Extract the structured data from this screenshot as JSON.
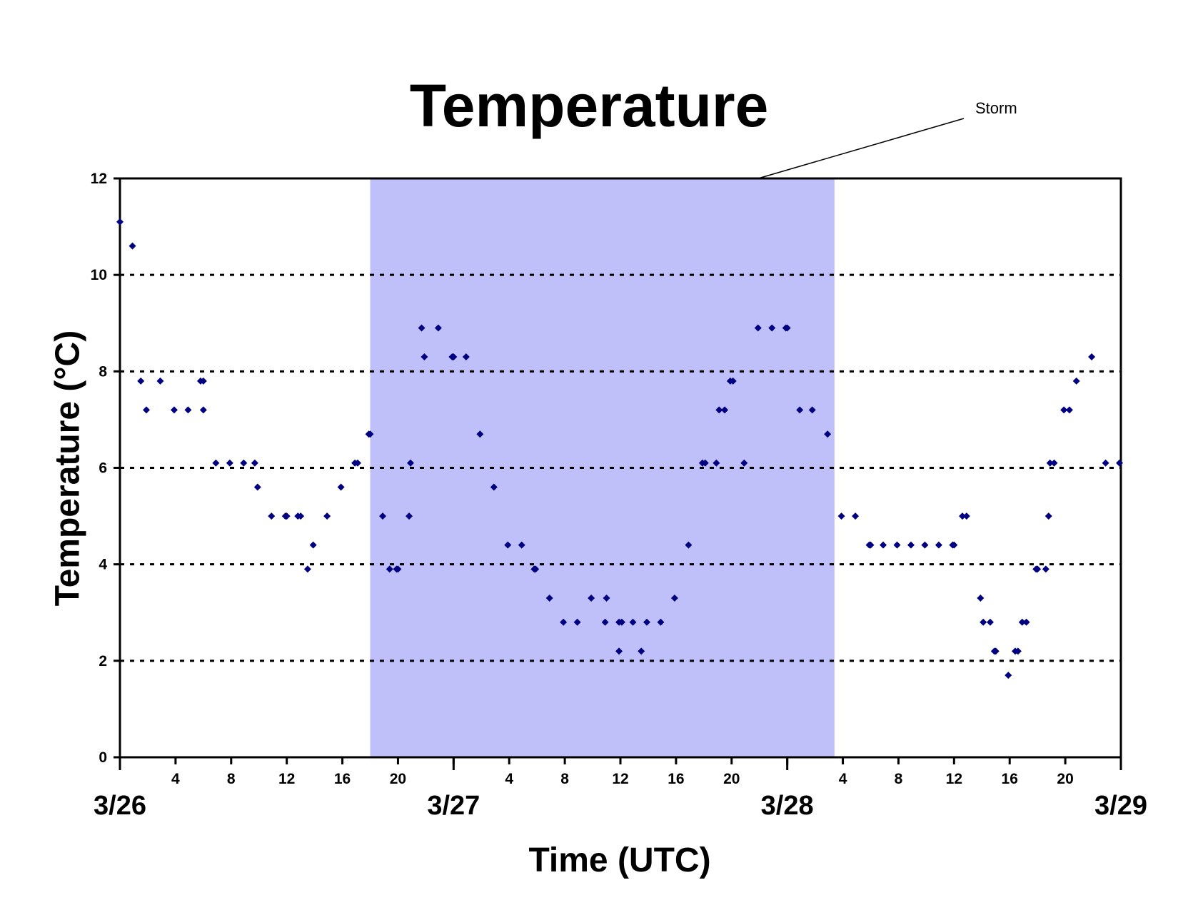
{
  "chart_data": {
    "type": "scatter",
    "title": "Temperature",
    "xlabel": "Time (UTC)",
    "ylabel": "Temperature (°C)",
    "ylim": [
      0,
      12
    ],
    "yticks": [
      0,
      2,
      4,
      6,
      8,
      10,
      12
    ],
    "xlim_hours": [
      0,
      72
    ],
    "hour_tick_labels": [
      "4",
      "8",
      "12",
      "16",
      "20",
      "4",
      "8",
      "12",
      "16",
      "20",
      "4",
      "8",
      "12",
      "16",
      "20"
    ],
    "hour_tick_values": [
      4,
      8,
      12,
      16,
      20,
      28,
      32,
      36,
      40,
      44,
      52,
      56,
      60,
      64,
      68
    ],
    "day_labels": [
      {
        "label": "3/26",
        "hour": 0
      },
      {
        "label": "3/27",
        "hour": 24
      },
      {
        "label": "3/28",
        "hour": 48
      },
      {
        "label": "3/29",
        "hour": 72
      }
    ],
    "grid": "horizontal dotted",
    "marker_color": "#000080",
    "storm": {
      "label": "Storm",
      "start_hour": 18,
      "end_hour": 51.4,
      "color": "#bfbffa"
    },
    "series": [
      {
        "name": "",
        "points": [
          [
            0,
            11.1
          ],
          [
            0.9,
            10.6
          ],
          [
            1.5,
            7.8
          ],
          [
            1.9,
            7.2
          ],
          [
            2.9,
            7.8
          ],
          [
            3.9,
            7.2
          ],
          [
            4.9,
            7.2
          ],
          [
            5.8,
            7.8
          ],
          [
            6.0,
            7.8
          ],
          [
            6.0,
            7.2
          ],
          [
            6.9,
            6.1
          ],
          [
            7.9,
            6.1
          ],
          [
            8.9,
            6.1
          ],
          [
            9.7,
            6.1
          ],
          [
            9.9,
            5.6
          ],
          [
            10.9,
            5.0
          ],
          [
            11.9,
            5.0
          ],
          [
            12.0,
            5.0
          ],
          [
            12.8,
            5.0
          ],
          [
            13.0,
            5.0
          ],
          [
            13.5,
            3.9
          ],
          [
            13.9,
            4.4
          ],
          [
            14.9,
            5.0
          ],
          [
            15.9,
            5.6
          ],
          [
            16.9,
            6.1
          ],
          [
            17.1,
            6.1
          ],
          [
            17.9,
            6.7
          ],
          [
            18.0,
            6.7
          ],
          [
            18.9,
            5.0
          ],
          [
            19.4,
            3.9
          ],
          [
            19.9,
            3.9
          ],
          [
            20.0,
            3.9
          ],
          [
            20.8,
            5.0
          ],
          [
            20.9,
            6.1
          ],
          [
            21.7,
            8.9
          ],
          [
            21.9,
            8.3
          ],
          [
            22.9,
            8.9
          ],
          [
            23.9,
            8.3
          ],
          [
            24.0,
            8.3
          ],
          [
            24.9,
            8.3
          ],
          [
            25.9,
            6.7
          ],
          [
            26.9,
            5.6
          ],
          [
            27.9,
            4.4
          ],
          [
            28.9,
            4.4
          ],
          [
            29.8,
            3.9
          ],
          [
            29.9,
            3.9
          ],
          [
            30.9,
            3.3
          ],
          [
            31.9,
            2.8
          ],
          [
            32.9,
            2.8
          ],
          [
            33.9,
            3.3
          ],
          [
            34.9,
            2.8
          ],
          [
            35.0,
            3.3
          ],
          [
            35.9,
            2.2
          ],
          [
            35.9,
            2.8
          ],
          [
            36.1,
            2.8
          ],
          [
            36.9,
            2.8
          ],
          [
            37.5,
            2.2
          ],
          [
            37.9,
            2.8
          ],
          [
            38.9,
            2.8
          ],
          [
            39.9,
            3.3
          ],
          [
            40.9,
            4.4
          ],
          [
            41.9,
            6.1
          ],
          [
            42.1,
            6.1
          ],
          [
            42.9,
            6.1
          ],
          [
            43.1,
            7.2
          ],
          [
            43.5,
            7.2
          ],
          [
            43.9,
            7.8
          ],
          [
            44.1,
            7.8
          ],
          [
            44.9,
            6.1
          ],
          [
            45.9,
            8.9
          ],
          [
            46.9,
            8.9
          ],
          [
            47.9,
            8.9
          ],
          [
            48.0,
            8.9
          ],
          [
            48.9,
            7.2
          ],
          [
            49.8,
            7.2
          ],
          [
            50.9,
            6.7
          ],
          [
            51.9,
            5.0
          ],
          [
            52.9,
            5.0
          ],
          [
            53.9,
            4.4
          ],
          [
            54.0,
            4.4
          ],
          [
            54.9,
            4.4
          ],
          [
            55.9,
            4.4
          ],
          [
            56.9,
            4.4
          ],
          [
            57.9,
            4.4
          ],
          [
            58.9,
            4.4
          ],
          [
            59.9,
            4.4
          ],
          [
            60.0,
            4.4
          ],
          [
            60.6,
            5.0
          ],
          [
            60.9,
            5.0
          ],
          [
            61.9,
            3.3
          ],
          [
            62.1,
            2.8
          ],
          [
            62.6,
            2.8
          ],
          [
            62.9,
            2.2
          ],
          [
            63.0,
            2.2
          ],
          [
            63.9,
            1.7
          ],
          [
            64.4,
            2.2
          ],
          [
            64.6,
            2.2
          ],
          [
            64.9,
            2.8
          ],
          [
            65.2,
            2.8
          ],
          [
            65.9,
            3.9
          ],
          [
            66.0,
            3.9
          ],
          [
            66.6,
            3.9
          ],
          [
            66.8,
            5.0
          ],
          [
            66.9,
            6.1
          ],
          [
            67.2,
            6.1
          ],
          [
            67.9,
            7.2
          ],
          [
            68.3,
            7.2
          ],
          [
            68.8,
            7.8
          ],
          [
            69.9,
            8.3
          ],
          [
            70.9,
            6.1
          ],
          [
            71.9,
            6.1
          ]
        ]
      }
    ]
  }
}
